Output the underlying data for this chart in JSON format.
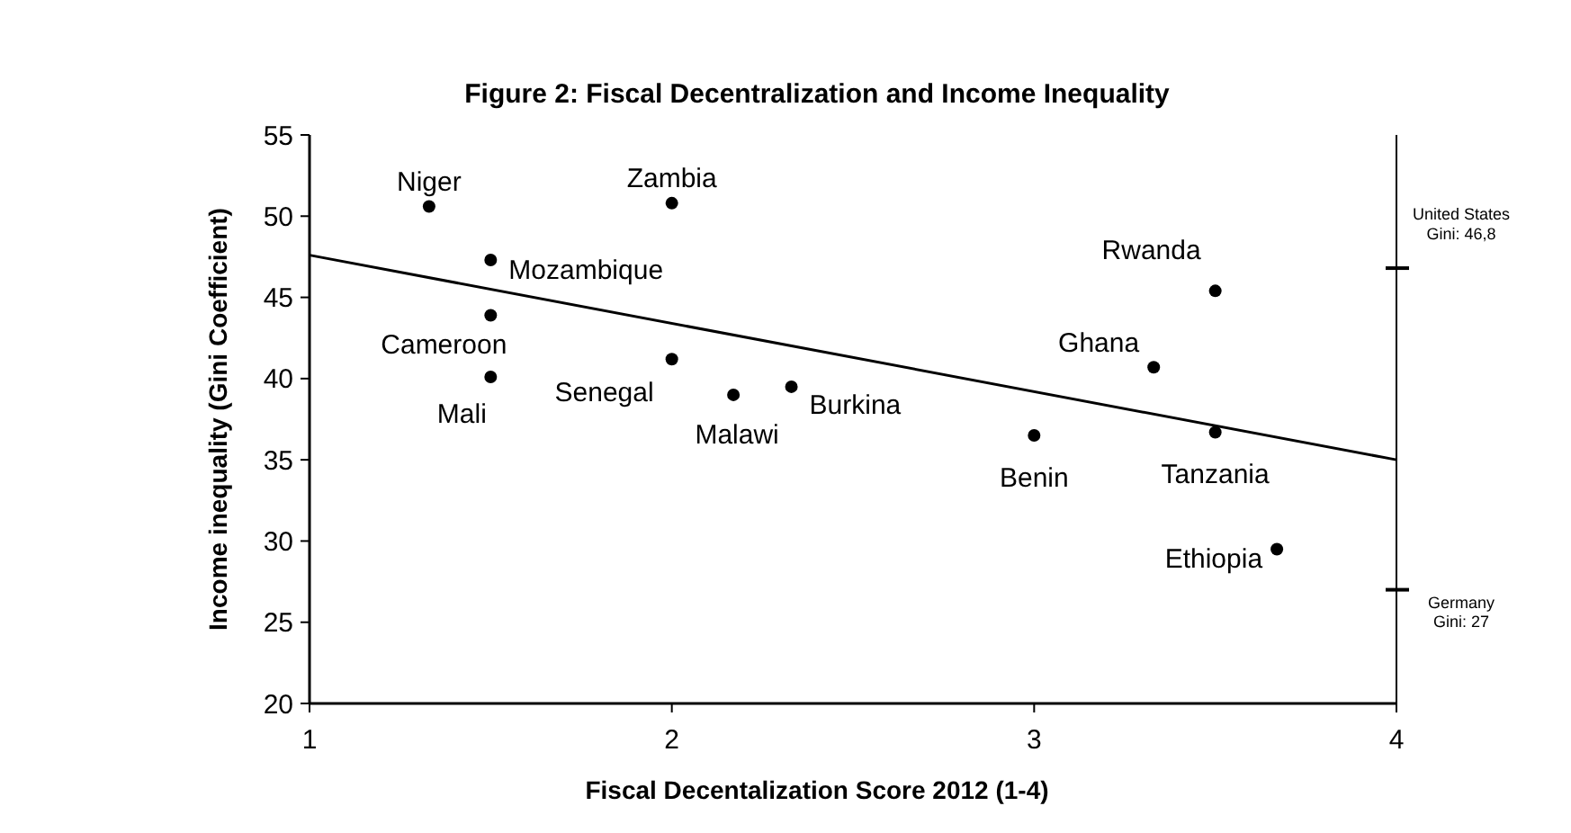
{
  "chart_data": {
    "type": "scatter",
    "title": "Figure 2: Fiscal Decentralization and Income Inequality",
    "xlabel": "Fiscal Decentalization Score 2012 (1-4)",
    "ylabel": "Income inequality (Gini Coefficient)",
    "xlim": [
      1,
      4
    ],
    "xticks": [
      1,
      2,
      3,
      4
    ],
    "ylim": [
      20,
      55
    ],
    "yticks": [
      20,
      25,
      30,
      35,
      40,
      45,
      50,
      55
    ],
    "grid": false,
    "series": [
      {
        "marker": "circle",
        "color": "#000000",
        "x": [
          1.33,
          2,
          1.5,
          1.5,
          1.5,
          2,
          2.17,
          2.33,
          3,
          3.5,
          3.33,
          3.5,
          3.67
        ],
        "values": [
          50.6,
          50.8,
          47.3,
          43.9,
          40.1,
          41.2,
          39,
          39.5,
          36.5,
          36.7,
          40.7,
          45.4,
          29.5
        ]
      },
      {
        "type": "line",
        "color": "#000000",
        "x": [
          1,
          4
        ],
        "values": [
          47.6,
          35
        ],
        "line_style": "solid",
        "marker": "none"
      }
    ],
    "annotations": [
      {
        "text": "Niger",
        "x": 1.33,
        "y": 50.6
      },
      {
        "text": "Zambia",
        "x": 2,
        "y": 50.8
      },
      {
        "text": "Mozambique",
        "x": 1.5,
        "y": 47.3
      },
      {
        "text": "Cameroon",
        "x": 1.5,
        "y": 43.9
      },
      {
        "text": "Mali",
        "x": 1.5,
        "y": 40.1
      },
      {
        "text": "Senegal",
        "x": 2,
        "y": 41.2
      },
      {
        "text": "Malawi",
        "x": 2.17,
        "y": 39
      },
      {
        "text": "Burkina",
        "x": 2.33,
        "y": 39.5
      },
      {
        "text": "Benin",
        "x": 3,
        "y": 36.5
      },
      {
        "text": "Tanzania",
        "x": 3.5,
        "y": 36.7
      },
      {
        "text": "Ghana",
        "x": 3.33,
        "y": 40.7
      },
      {
        "text": "Rwanda",
        "x": 3.5,
        "y": 45.4
      },
      {
        "text": "Ethiopia",
        "x": 3.67,
        "y": 29.5
      }
    ],
    "ref_lines": [
      {
        "axis": "y",
        "value": 46.8,
        "label": "United States Gini: 46,8"
      },
      {
        "axis": "y",
        "value": 27,
        "label": "Germany Gini: 27"
      }
    ]
  }
}
